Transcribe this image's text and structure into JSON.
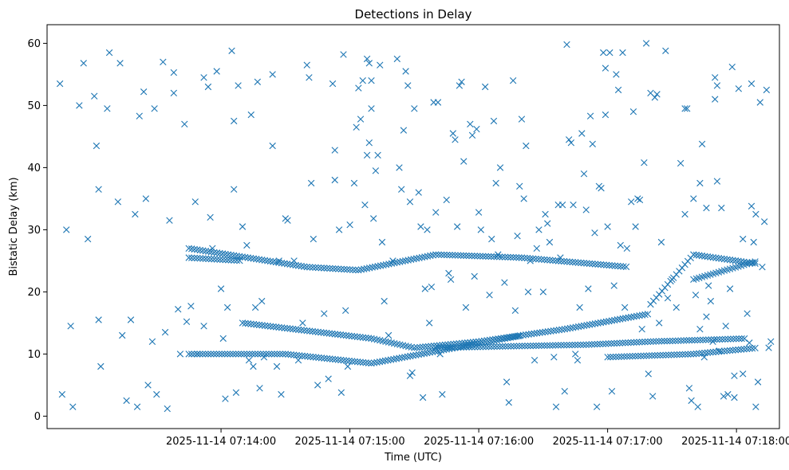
{
  "chart_data": {
    "type": "scatter",
    "title": "Detections in Delay",
    "xlabel": "Time (UTC)",
    "ylabel": "Bistatic Delay (km)",
    "x_unit": "seconds after 2025-11-14 07:13:00 UTC",
    "xlim": [
      -21,
      320
    ],
    "ylim": [
      -2,
      63
    ],
    "x_ticks": [
      {
        "value": 60,
        "label": "2025-11-14 07:14:00"
      },
      {
        "value": 120,
        "label": "2025-11-14 07:15:00"
      },
      {
        "value": 180,
        "label": "2025-11-14 07:16:00"
      },
      {
        "value": 240,
        "label": "2025-11-14 07:17:00"
      },
      {
        "value": 300,
        "label": "2025-11-14 07:18:00"
      }
    ],
    "y_ticks": [
      0,
      10,
      20,
      30,
      40,
      50,
      60
    ],
    "marker": "x",
    "color": "#1f77b4",
    "grid": false,
    "tracks": [
      {
        "x": [
          45,
          90,
          130,
          200
        ],
        "y": [
          10,
          10,
          8.5,
          13
        ]
      },
      {
        "x": [
          45,
          100,
          124,
          160,
          200,
          250
        ],
        "y": [
          27,
          24,
          23.5,
          26,
          25.5,
          24
        ]
      },
      {
        "x": [
          45,
          70
        ],
        "y": [
          25.5,
          25
        ]
      },
      {
        "x": [
          70,
          130,
          150,
          180,
          220,
          260
        ],
        "y": [
          15,
          12.5,
          11,
          12,
          14,
          16.5
        ]
      },
      {
        "x": [
          160,
          230,
          260,
          305
        ],
        "y": [
          11,
          11.5,
          12,
          12.5
        ]
      },
      {
        "x": [
          240,
          280,
          310
        ],
        "y": [
          9.5,
          10,
          11
        ]
      },
      {
        "x": [
          260,
          280,
          310
        ],
        "y": [
          18,
          26,
          24.5
        ]
      },
      {
        "x": [
          280,
          310
        ],
        "y": [
          22,
          25
        ]
      }
    ],
    "scatter_points": [
      [
        -15,
        53.5
      ],
      [
        -12,
        30
      ],
      [
        -10,
        14.5
      ],
      [
        -14,
        3.5
      ],
      [
        -9,
        1.5
      ],
      [
        -6,
        50
      ],
      [
        -4,
        56.8
      ],
      [
        -2,
        28.5
      ],
      [
        2,
        43.5
      ],
      [
        3,
        36.5
      ],
      [
        1,
        51.5
      ],
      [
        3,
        15.5
      ],
      [
        4,
        8
      ],
      [
        7,
        49.5
      ],
      [
        8,
        58.5
      ],
      [
        12,
        34.5
      ],
      [
        13,
        56.8
      ],
      [
        14,
        13
      ],
      [
        16,
        2.5
      ],
      [
        18,
        15.5
      ],
      [
        20,
        32.5
      ],
      [
        21,
        1.5
      ],
      [
        22,
        48.3
      ],
      [
        24,
        52.2
      ],
      [
        25,
        35
      ],
      [
        26,
        5
      ],
      [
        28,
        12
      ],
      [
        29,
        49.5
      ],
      [
        30,
        3.5
      ],
      [
        33,
        57
      ],
      [
        34,
        13.5
      ],
      [
        35,
        1.2
      ],
      [
        36,
        31.5
      ],
      [
        38,
        55.3
      ],
      [
        38,
        52
      ],
      [
        40,
        17.2
      ],
      [
        41,
        10
      ],
      [
        43,
        47
      ],
      [
        44,
        15.2
      ],
      [
        46,
        17.7
      ],
      [
        48,
        34.5
      ],
      [
        49,
        10
      ],
      [
        52,
        14.5
      ],
      [
        52,
        54.5
      ],
      [
        54,
        53
      ],
      [
        55,
        32
      ],
      [
        56,
        27
      ],
      [
        58,
        55.5
      ],
      [
        60,
        20.5
      ],
      [
        61,
        12.5
      ],
      [
        62,
        2.8
      ],
      [
        63,
        17.5
      ],
      [
        65,
        58.8
      ],
      [
        66,
        47.5
      ],
      [
        66,
        36.5
      ],
      [
        67,
        3.8
      ],
      [
        68,
        53.2
      ],
      [
        70,
        30.5
      ],
      [
        72,
        27.5
      ],
      [
        73,
        9
      ],
      [
        74,
        48.5
      ],
      [
        75,
        8
      ],
      [
        76,
        17.5
      ],
      [
        77,
        53.8
      ],
      [
        78,
        4.5
      ],
      [
        79,
        18.5
      ],
      [
        80,
        9.5
      ],
      [
        84,
        43.5
      ],
      [
        84,
        55
      ],
      [
        86,
        8
      ],
      [
        87,
        25
      ],
      [
        88,
        3.5
      ],
      [
        90,
        31.8
      ],
      [
        91,
        31.5
      ],
      [
        94,
        25
      ],
      [
        96,
        9
      ],
      [
        98,
        15
      ],
      [
        100,
        56.5
      ],
      [
        101,
        54.5
      ],
      [
        102,
        37.5
      ],
      [
        103,
        28.5
      ],
      [
        105,
        5
      ],
      [
        108,
        16.5
      ],
      [
        110,
        6
      ],
      [
        112,
        53.5
      ],
      [
        113,
        38
      ],
      [
        113,
        42.8
      ],
      [
        115,
        30
      ],
      [
        116,
        3.8
      ],
      [
        117,
        58.2
      ],
      [
        118,
        17
      ],
      [
        119,
        8
      ],
      [
        120,
        30.8
      ],
      [
        122,
        37.5
      ],
      [
        123,
        46.5
      ],
      [
        124,
        52.8
      ],
      [
        125,
        47.8
      ],
      [
        126,
        54
      ],
      [
        127,
        34
      ],
      [
        128,
        57.5
      ],
      [
        128,
        42
      ],
      [
        129,
        56.8
      ],
      [
        129,
        44
      ],
      [
        130,
        49.5
      ],
      [
        130,
        54
      ],
      [
        131,
        31.8
      ],
      [
        132,
        39.5
      ],
      [
        133,
        42
      ],
      [
        134,
        56.5
      ],
      [
        135,
        28
      ],
      [
        136,
        18.5
      ],
      [
        138,
        13
      ],
      [
        140,
        25
      ],
      [
        142,
        57.5
      ],
      [
        143,
        40
      ],
      [
        144,
        36.5
      ],
      [
        145,
        46
      ],
      [
        146,
        55.5
      ],
      [
        147,
        53.2
      ],
      [
        148,
        34.5
      ],
      [
        148,
        6.5
      ],
      [
        149,
        7
      ],
      [
        150,
        49.5
      ],
      [
        152,
        36
      ],
      [
        153,
        30.5
      ],
      [
        154,
        3
      ],
      [
        155,
        20.5
      ],
      [
        156,
        30
      ],
      [
        157,
        15
      ],
      [
        158,
        20.8
      ],
      [
        159,
        50.5
      ],
      [
        160,
        32.8
      ],
      [
        161,
        50.5
      ],
      [
        162,
        10
      ],
      [
        163,
        3.5
      ],
      [
        165,
        34.8
      ],
      [
        166,
        23
      ],
      [
        167,
        22
      ],
      [
        168,
        45.5
      ],
      [
        169,
        44.5
      ],
      [
        170,
        30.5
      ],
      [
        171,
        53.2
      ],
      [
        172,
        53.8
      ],
      [
        173,
        41
      ],
      [
        174,
        17.5
      ],
      [
        176,
        47
      ],
      [
        177,
        45.2
      ],
      [
        178,
        22.5
      ],
      [
        179,
        46.2
      ],
      [
        180,
        32.8
      ],
      [
        181,
        30
      ],
      [
        183,
        53
      ],
      [
        185,
        19.5
      ],
      [
        186,
        28.5
      ],
      [
        187,
        47.5
      ],
      [
        188,
        37.5
      ],
      [
        189,
        26
      ],
      [
        190,
        40
      ],
      [
        192,
        21.5
      ],
      [
        193,
        5.5
      ],
      [
        194,
        2.2
      ],
      [
        196,
        54
      ],
      [
        197,
        17
      ],
      [
        198,
        29
      ],
      [
        199,
        37
      ],
      [
        200,
        47.8
      ],
      [
        201,
        35
      ],
      [
        202,
        43.5
      ],
      [
        203,
        20
      ],
      [
        204,
        25
      ],
      [
        206,
        9
      ],
      [
        207,
        27
      ],
      [
        208,
        30
      ],
      [
        210,
        20
      ],
      [
        211,
        32.5
      ],
      [
        212,
        31
      ],
      [
        213,
        28
      ],
      [
        215,
        9.5
      ],
      [
        216,
        1.5
      ],
      [
        217,
        34
      ],
      [
        218,
        25.5
      ],
      [
        219,
        34
      ],
      [
        220,
        4
      ],
      [
        221,
        59.8
      ],
      [
        222,
        44.5
      ],
      [
        223,
        44
      ],
      [
        224,
        34
      ],
      [
        225,
        10
      ],
      [
        226,
        9
      ],
      [
        227,
        17.5
      ],
      [
        228,
        45.5
      ],
      [
        229,
        39
      ],
      [
        230,
        33.2
      ],
      [
        231,
        20.5
      ],
      [
        232,
        48.3
      ],
      [
        233,
        43.8
      ],
      [
        234,
        29.5
      ],
      [
        235,
        1.5
      ],
      [
        236,
        37
      ],
      [
        237,
        36.7
      ],
      [
        238,
        58.5
      ],
      [
        239,
        48.5
      ],
      [
        239,
        56
      ],
      [
        240,
        30.5
      ],
      [
        241,
        58.5
      ],
      [
        242,
        4
      ],
      [
        243,
        21
      ],
      [
        244,
        55
      ],
      [
        245,
        52.5
      ],
      [
        246,
        27.5
      ],
      [
        247,
        58.5
      ],
      [
        248,
        17.5
      ],
      [
        249,
        27
      ],
      [
        251,
        34.5
      ],
      [
        252,
        49
      ],
      [
        253,
        30.5
      ],
      [
        254,
        35
      ],
      [
        255,
        34.8
      ],
      [
        256,
        14
      ],
      [
        257,
        40.8
      ],
      [
        258,
        60
      ],
      [
        259,
        6.8
      ],
      [
        260,
        52
      ],
      [
        261,
        3.2
      ],
      [
        262,
        51.3
      ],
      [
        263,
        51.8
      ],
      [
        264,
        15
      ],
      [
        265,
        28
      ],
      [
        267,
        58.8
      ],
      [
        268,
        19
      ],
      [
        270,
        22
      ],
      [
        272,
        17.5
      ],
      [
        274,
        40.7
      ],
      [
        276,
        49.5
      ],
      [
        276,
        32.5
      ],
      [
        277,
        49.5
      ],
      [
        278,
        4.5
      ],
      [
        279,
        2.5
      ],
      [
        280,
        35
      ],
      [
        281,
        19.5
      ],
      [
        282,
        1.5
      ],
      [
        283,
        37.5
      ],
      [
        283,
        14
      ],
      [
        284,
        43.8
      ],
      [
        285,
        9.5
      ],
      [
        286,
        33.5
      ],
      [
        286,
        16
      ],
      [
        287,
        21
      ],
      [
        288,
        18.5
      ],
      [
        289,
        12
      ],
      [
        290,
        51
      ],
      [
        290,
        54.5
      ],
      [
        291,
        53.2
      ],
      [
        291,
        37.8
      ],
      [
        292,
        10.5
      ],
      [
        293,
        33.5
      ],
      [
        294,
        3.2
      ],
      [
        295,
        14.5
      ],
      [
        296,
        3.5
      ],
      [
        297,
        20.5
      ],
      [
        298,
        56.2
      ],
      [
        299,
        6.5
      ],
      [
        299,
        3
      ],
      [
        301,
        52.7
      ],
      [
        303,
        28.5
      ],
      [
        303,
        6.8
      ],
      [
        305,
        16.5
      ],
      [
        306,
        11.8
      ],
      [
        307,
        53.5
      ],
      [
        307,
        33.8
      ],
      [
        308,
        28
      ],
      [
        309,
        1.5
      ],
      [
        309,
        32.5
      ],
      [
        310,
        5.5
      ],
      [
        311,
        50.5
      ],
      [
        312,
        24
      ],
      [
        313,
        31.3
      ],
      [
        314,
        52.5
      ],
      [
        315,
        11
      ],
      [
        316,
        12
      ]
    ]
  }
}
